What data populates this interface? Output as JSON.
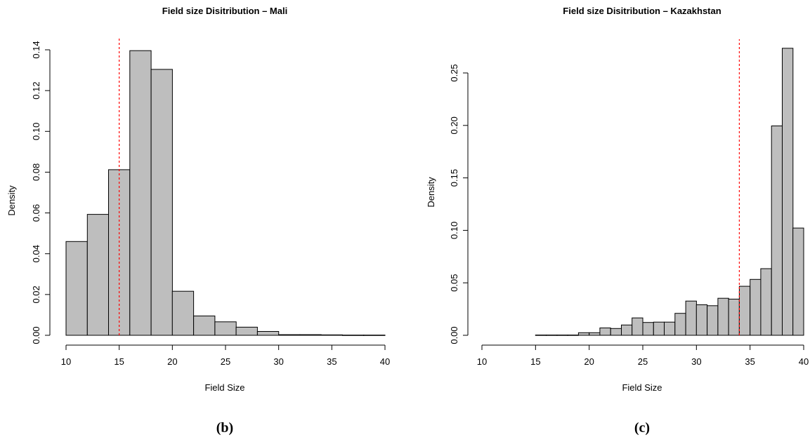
{
  "chart_data": [
    {
      "type": "bar",
      "title": "Field size Disitribution – Mali",
      "xlabel": "Field Size",
      "ylabel": "Density",
      "caption": "(b)",
      "xlim": [
        10,
        40
      ],
      "ylim": [
        0,
        0.14
      ],
      "xticks": [
        10,
        15,
        20,
        25,
        30,
        35,
        40
      ],
      "yticks": [
        0.0,
        0.02,
        0.04,
        0.06,
        0.08,
        0.1,
        0.12,
        0.14
      ],
      "ytick_labels": [
        "0.00",
        "0.02",
        "0.04",
        "0.06",
        "0.08",
        "0.10",
        "0.12",
        "0.14"
      ],
      "bins": [
        {
          "x0": 10,
          "x1": 12,
          "density": 0.046
        },
        {
          "x0": 12,
          "x1": 14,
          "density": 0.0593
        },
        {
          "x0": 14,
          "x1": 16,
          "density": 0.0812
        },
        {
          "x0": 16,
          "x1": 18,
          "density": 0.1396
        },
        {
          "x0": 18,
          "x1": 20,
          "density": 0.1304
        },
        {
          "x0": 20,
          "x1": 22,
          "density": 0.0216
        },
        {
          "x0": 22,
          "x1": 24,
          "density": 0.0095
        },
        {
          "x0": 24,
          "x1": 26,
          "density": 0.0066
        },
        {
          "x0": 26,
          "x1": 28,
          "density": 0.004
        },
        {
          "x0": 28,
          "x1": 30,
          "density": 0.0019
        },
        {
          "x0": 30,
          "x1": 32,
          "density": 0.0003
        },
        {
          "x0": 32,
          "x1": 34,
          "density": 0.0003
        },
        {
          "x0": 34,
          "x1": 36,
          "density": 0.0002
        },
        {
          "x0": 36,
          "x1": 38,
          "density": 0.0001
        },
        {
          "x0": 38,
          "x1": 40,
          "density": 0.0001
        }
      ],
      "reference_line": {
        "x": 15,
        "color": "#ff0000",
        "style": "dashed"
      },
      "bar_color": "#bebebe",
      "grid": false,
      "legend": "none"
    },
    {
      "type": "bar",
      "title": "Field size Disitribution – Kazakhstan",
      "xlabel": "Field Size",
      "ylabel": "Density",
      "caption": "(c)",
      "xlim": [
        10,
        40
      ],
      "ylim": [
        0,
        0.25
      ],
      "xticks": [
        10,
        15,
        20,
        25,
        30,
        35,
        40
      ],
      "yticks": [
        0.0,
        0.05,
        0.1,
        0.15,
        0.2,
        0.25
      ],
      "ytick_labels": [
        "0.00",
        "0.05",
        "0.10",
        "0.15",
        "0.20",
        "0.25"
      ],
      "bins": [
        {
          "x0": 15,
          "x1": 16,
          "density": 0.0003
        },
        {
          "x0": 16,
          "x1": 17,
          "density": 0.0003
        },
        {
          "x0": 17,
          "x1": 18,
          "density": 0.0003
        },
        {
          "x0": 18,
          "x1": 19,
          "density": 0.0003
        },
        {
          "x0": 19,
          "x1": 20,
          "density": 0.0025
        },
        {
          "x0": 20,
          "x1": 21,
          "density": 0.0025
        },
        {
          "x0": 21,
          "x1": 22,
          "density": 0.007
        },
        {
          "x0": 22,
          "x1": 23,
          "density": 0.0065
        },
        {
          "x0": 23,
          "x1": 24,
          "density": 0.0098
        },
        {
          "x0": 24,
          "x1": 25,
          "density": 0.0166
        },
        {
          "x0": 25,
          "x1": 26,
          "density": 0.0122
        },
        {
          "x0": 26,
          "x1": 27,
          "density": 0.0126
        },
        {
          "x0": 27,
          "x1": 28,
          "density": 0.0126
        },
        {
          "x0": 28,
          "x1": 29,
          "density": 0.0209
        },
        {
          "x0": 29,
          "x1": 30,
          "density": 0.0326
        },
        {
          "x0": 30,
          "x1": 31,
          "density": 0.0291
        },
        {
          "x0": 31,
          "x1": 32,
          "density": 0.0282
        },
        {
          "x0": 32,
          "x1": 33,
          "density": 0.0353
        },
        {
          "x0": 33,
          "x1": 34,
          "density": 0.0345
        },
        {
          "x0": 34,
          "x1": 35,
          "density": 0.0467
        },
        {
          "x0": 35,
          "x1": 36,
          "density": 0.0533
        },
        {
          "x0": 36,
          "x1": 37,
          "density": 0.0635
        },
        {
          "x0": 37,
          "x1": 38,
          "density": 0.1995
        },
        {
          "x0": 38,
          "x1": 39,
          "density": 0.2735
        },
        {
          "x0": 39,
          "x1": 40,
          "density": 0.1022
        }
      ],
      "reference_line": {
        "x": 34,
        "color": "#ff0000",
        "style": "dashed"
      },
      "bar_color": "#bebebe",
      "grid": false,
      "legend": "none"
    }
  ]
}
